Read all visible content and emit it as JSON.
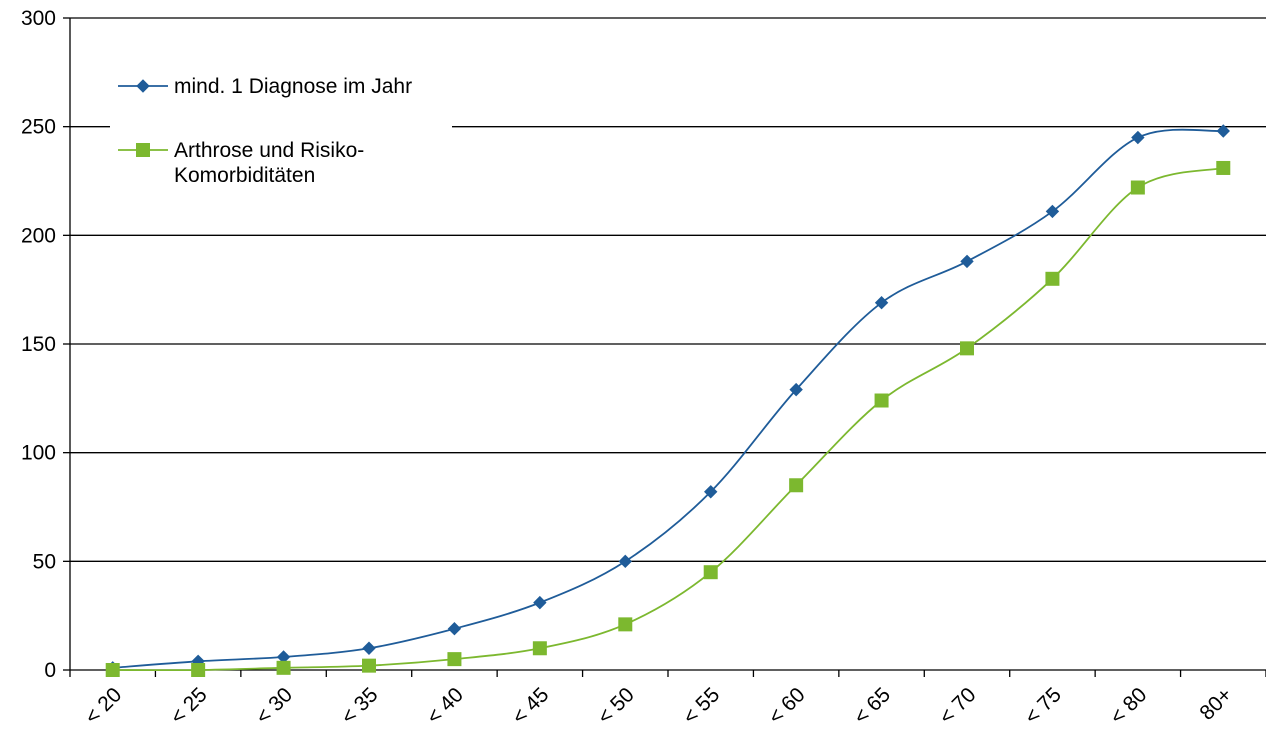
{
  "chart_data": {
    "type": "line",
    "categories": [
      "< 20",
      "< 25",
      "< 30",
      "< 35",
      "< 40",
      "< 45",
      "< 50",
      "< 55",
      "< 60",
      "< 65",
      "< 70",
      "< 75",
      "< 80",
      "80+"
    ],
    "y_ticks": [
      "0",
      "50",
      "100",
      "150",
      "200",
      "250",
      "300"
    ],
    "ylim": [
      0,
      300
    ],
    "grid": true,
    "legend_position": "top-left",
    "series": [
      {
        "name": "mind. 1 Diagnose im Jahr",
        "marker": "diamond",
        "color": "#1F5C99",
        "values": [
          1,
          4,
          6,
          10,
          19,
          31,
          50,
          82,
          129,
          169,
          188,
          211,
          245,
          248
        ]
      },
      {
        "name": "Arthrose und Risiko-Komorbiditäten",
        "marker": "square",
        "color": "#7CB82F",
        "values": [
          0,
          0,
          1,
          2,
          5,
          10,
          21,
          45,
          85,
          124,
          148,
          180,
          222,
          231
        ]
      }
    ],
    "legend_lines": [
      [
        "mind. 1 Diagnose im Jahr"
      ],
      [
        "Arthrose und Risiko-",
        "Komorbiditäten"
      ]
    ]
  }
}
